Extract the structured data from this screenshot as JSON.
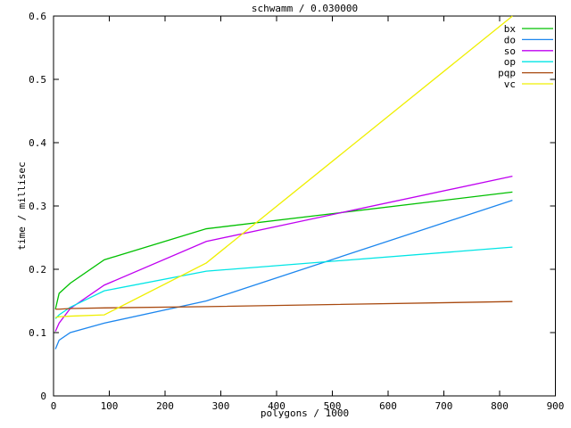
{
  "window": {
    "background": "#ffffff",
    "text_color": "#000000"
  },
  "chart_data": {
    "type": "line",
    "title": "schwamm / 0.030000",
    "xlabel": "polygons / 1000",
    "ylabel": "time / millisec",
    "xlim": [
      0,
      900
    ],
    "ylim": [
      0,
      0.6
    ],
    "xtick_values": [
      0,
      100,
      200,
      300,
      400,
      500,
      600,
      700,
      800,
      900
    ],
    "xtick_labels": [
      "0",
      "100",
      "200",
      "300",
      "400",
      "500",
      "600",
      "700",
      "800",
      "900"
    ],
    "ytick_values": [
      0,
      0.1,
      0.2,
      0.3,
      0.4,
      0.5,
      0.6
    ],
    "ytick_labels": [
      "0",
      "0.1",
      "0.2",
      "0.3",
      "0.4",
      "0.5",
      "0.6"
    ],
    "grid": false,
    "border_box": true,
    "ticks_mirrored_inward": true,
    "legend_position": "top-right-inside",
    "x": [
      3.4,
      10,
      30,
      91,
      274,
      823
    ],
    "series": [
      {
        "name": "bx",
        "color": "#00c000",
        "values": [
          0.137,
          0.162,
          0.178,
          0.215,
          0.264,
          0.322
        ]
      },
      {
        "name": "do",
        "color": "#1c86ee",
        "values": [
          0.074,
          0.088,
          0.1,
          0.115,
          0.15,
          0.309
        ]
      },
      {
        "name": "so",
        "color": "#bf00f0",
        "values": [
          0.102,
          0.115,
          0.138,
          0.175,
          0.244,
          0.347
        ]
      },
      {
        "name": "op",
        "color": "#00e5e5",
        "values": [
          0.122,
          0.128,
          0.14,
          0.166,
          0.197,
          0.235
        ]
      },
      {
        "name": "pqp",
        "color": "#a8490f",
        "values": [
          0.137,
          0.137,
          0.138,
          0.139,
          0.141,
          0.149
        ]
      },
      {
        "name": "vc",
        "color": "#efef00",
        "values": [
          0.124,
          0.125,
          0.126,
          0.128,
          0.21,
          0.6
        ]
      }
    ]
  }
}
